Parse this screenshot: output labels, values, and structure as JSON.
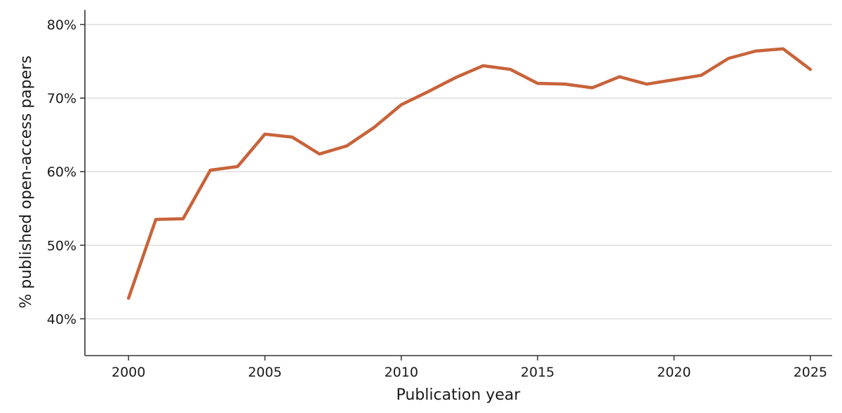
{
  "chart_data": {
    "type": "line",
    "xlabel": "Publication year",
    "ylabel": "% published open-access papers",
    "xlim": [
      1998.4,
      2025.8
    ],
    "ylim": [
      35,
      82
    ],
    "x_ticks": [
      2000,
      2005,
      2010,
      2015,
      2020,
      2025
    ],
    "x_tick_labels": [
      "2000",
      "2005",
      "2010",
      "2015",
      "2020",
      "2025"
    ],
    "y_ticks": [
      40,
      50,
      60,
      70,
      80
    ],
    "y_tick_labels": [
      "40%",
      "50%",
      "60%",
      "70%",
      "80%"
    ],
    "grid": "horizontal",
    "series": [
      {
        "color": "#c8633a",
        "x": [
          2000,
          2001,
          2002,
          2003,
          2004,
          2005,
          2006,
          2007,
          2008,
          2009,
          2010,
          2011,
          2012,
          2013,
          2014,
          2015,
          2016,
          2017,
          2018,
          2019,
          2020,
          2021,
          2022,
          2023,
          2024,
          2025
        ],
        "y": [
          42.8,
          53.5,
          53.6,
          60.2,
          60.7,
          65.1,
          64.7,
          62.4,
          63.5,
          66.0,
          69.1,
          70.9,
          72.8,
          74.4,
          73.9,
          72.0,
          71.9,
          71.4,
          72.9,
          71.9,
          72.5,
          73.1,
          75.4,
          76.4,
          76.7,
          73.9
        ]
      }
    ]
  }
}
